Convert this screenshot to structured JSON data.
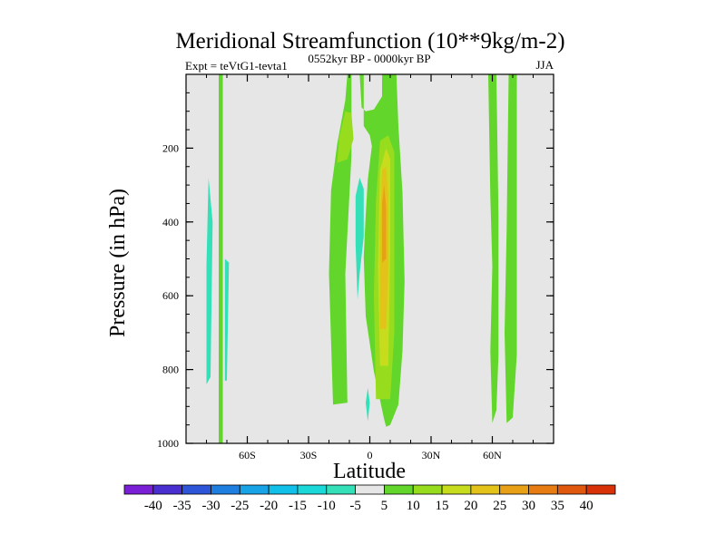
{
  "chart_data": {
    "type": "heatmap",
    "title": "Meridional Streamfunction (10**9kg/m-2)",
    "left_string": "Expt = teVtG1-tevta1",
    "center_string": "0552kyr BP - 0000kyr BP",
    "right_string": "JJA",
    "xlabel": "Latitude",
    "ylabel": "Pressure (in hPa)",
    "xlim": [
      -90,
      90
    ],
    "ylim": [
      1000,
      0
    ],
    "xticks": [
      {
        "value": -60,
        "label": "60S"
      },
      {
        "value": -30,
        "label": "30S"
      },
      {
        "value": 0,
        "label": "0"
      },
      {
        "value": 30,
        "label": "30N"
      },
      {
        "value": 60,
        "label": "60N"
      }
    ],
    "yticks": [
      {
        "value": 200,
        "label": "200"
      },
      {
        "value": 400,
        "label": "400"
      },
      {
        "value": 600,
        "label": "600"
      },
      {
        "value": 800,
        "label": "800"
      },
      {
        "value": 1000,
        "label": "1000"
      }
    ],
    "background_color": "#e6e6e6",
    "colorbar": {
      "levels": [
        -40,
        -35,
        -30,
        -25,
        -20,
        -15,
        -10,
        -5,
        5,
        10,
        15,
        20,
        25,
        30,
        35,
        40
      ],
      "labels": [
        "-40",
        "-35",
        "-30",
        "-25",
        "-20",
        "-15",
        "-10",
        "-5",
        "5",
        "10",
        "15",
        "20",
        "25",
        "30",
        "35",
        "40"
      ],
      "colors": [
        "#7a1fd6",
        "#4a2fd0",
        "#2d55d8",
        "#1f7fe0",
        "#17a3e6",
        "#10c0e8",
        "#1ad8d8",
        "#33e0b8",
        "#e6e6e6",
        "#62d62a",
        "#98dc1e",
        "#c8dc1e",
        "#e3c21a",
        "#e8a016",
        "#e67c12",
        "#e0580e",
        "#d83208"
      ]
    },
    "regions": [
      {
        "value": 7,
        "points": [
          [
            -74,
            1000
          ],
          [
            -74,
            0
          ],
          [
            -72,
            0
          ],
          [
            -72,
            1000
          ]
        ]
      },
      {
        "value": 7,
        "points": [
          [
            -18,
            895
          ],
          [
            -20,
            540
          ],
          [
            -19,
            315
          ],
          [
            -16,
            190
          ],
          [
            -12,
            70
          ],
          [
            -11,
            0
          ],
          [
            -3,
            0
          ],
          [
            -3,
            140
          ],
          [
            0,
            165
          ],
          [
            1,
            195
          ],
          [
            0,
            240
          ],
          [
            -1,
            285
          ],
          [
            -2,
            380
          ],
          [
            -3,
            495
          ],
          [
            -2,
            655
          ],
          [
            2,
            805
          ],
          [
            7,
            935
          ],
          [
            8,
            955
          ],
          [
            10,
            950
          ],
          [
            14,
            895
          ],
          [
            16,
            750
          ],
          [
            17,
            560
          ],
          [
            16,
            320
          ],
          [
            14,
            140
          ],
          [
            13,
            0
          ],
          [
            6,
            0
          ],
          [
            6,
            60
          ],
          [
            2,
            95
          ],
          [
            -2,
            100
          ],
          [
            -4,
            90
          ],
          [
            -5,
            0
          ],
          [
            -9,
            0
          ],
          [
            -9,
            220
          ],
          [
            -12,
            540
          ],
          [
            -11,
            890
          ]
        ]
      },
      {
        "value": 7,
        "points": [
          [
            60,
            945
          ],
          [
            59,
            750
          ],
          [
            60,
            520
          ],
          [
            59,
            330
          ],
          [
            58,
            0
          ],
          [
            62,
            0
          ],
          [
            63,
            380
          ],
          [
            63,
            760
          ],
          [
            62,
            910
          ]
        ]
      },
      {
        "value": 7,
        "points": [
          [
            67,
            945
          ],
          [
            66,
            700
          ],
          [
            67,
            420
          ],
          [
            68,
            0
          ],
          [
            72,
            0
          ],
          [
            72,
            420
          ],
          [
            72,
            760
          ],
          [
            70,
            930
          ]
        ]
      },
      {
        "value": 12,
        "points": [
          [
            -16,
            240
          ],
          [
            -15,
            170
          ],
          [
            -12,
            100
          ],
          [
            -9,
            105
          ],
          [
            -8,
            175
          ],
          [
            -11,
            230
          ]
        ]
      },
      {
        "value": 12,
        "points": [
          [
            3,
            880
          ],
          [
            2,
            600
          ],
          [
            3,
            340
          ],
          [
            5,
            180
          ],
          [
            9,
            165
          ],
          [
            12,
            210
          ],
          [
            12,
            420
          ],
          [
            12,
            700
          ],
          [
            10,
            880
          ]
        ]
      },
      {
        "value": 17,
        "points": [
          [
            5,
            790
          ],
          [
            4,
            520
          ],
          [
            5,
            260
          ],
          [
            8,
            200
          ],
          [
            10,
            230
          ],
          [
            10,
            480
          ],
          [
            9,
            790
          ]
        ]
      },
      {
        "value": 22,
        "points": [
          [
            5,
            690
          ],
          [
            5,
            420
          ],
          [
            6,
            260
          ],
          [
            8,
            250
          ],
          [
            9,
            330
          ],
          [
            9,
            520
          ],
          [
            8,
            690
          ]
        ]
      },
      {
        "value": 27,
        "points": [
          [
            6,
            510
          ],
          [
            6,
            350
          ],
          [
            7,
            300
          ],
          [
            8,
            360
          ],
          [
            8,
            500
          ]
        ]
      },
      {
        "value": -7,
        "points": [
          [
            -6,
            610
          ],
          [
            -7,
            460
          ],
          [
            -7,
            330
          ],
          [
            -5,
            280
          ],
          [
            -3,
            310
          ],
          [
            -3,
            440
          ],
          [
            -5,
            540
          ]
        ]
      },
      {
        "value": -7,
        "points": [
          [
            -80,
            840
          ],
          [
            -80,
            520
          ],
          [
            -79,
            280
          ],
          [
            -77,
            400
          ],
          [
            -78,
            820
          ]
        ]
      },
      {
        "value": -7,
        "points": [
          [
            -71,
            830
          ],
          [
            -71,
            500
          ],
          [
            -69,
            510
          ],
          [
            -70,
            830
          ]
        ]
      },
      {
        "value": -7,
        "points": [
          [
            -1,
            940
          ],
          [
            -2,
            890
          ],
          [
            -1,
            850
          ],
          [
            0,
            890
          ]
        ]
      }
    ]
  }
}
